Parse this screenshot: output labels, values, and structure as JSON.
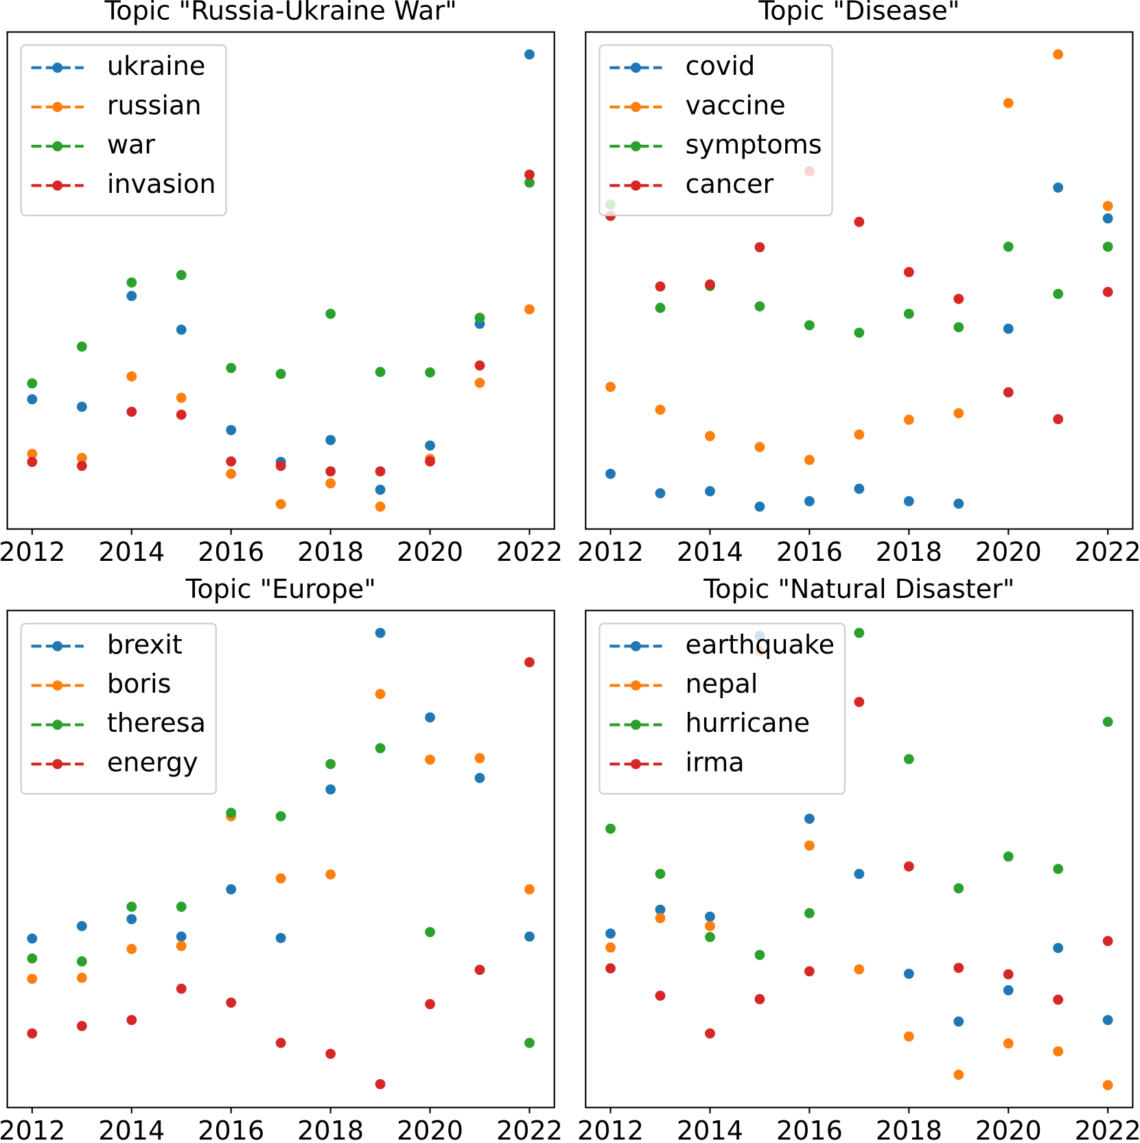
{
  "chart_data": [
    {
      "type": "line",
      "title": "Topic \"Russia-Ukraine War\"",
      "x": [
        2012,
        2013,
        2014,
        2015,
        2016,
        2017,
        2018,
        2019,
        2020,
        2021,
        2022
      ],
      "xlim": [
        2011.5,
        2022.5
      ],
      "xticks": [
        2012,
        2014,
        2016,
        2018,
        2020,
        2022
      ],
      "ylim": [
        0,
        100
      ],
      "legend": "upper left",
      "series": [
        {
          "name": "ukraine",
          "color": "#1f77b4",
          "values": [
            26.1,
            24.6,
            46.9,
            40.1,
            19.9,
            13.5,
            17.9,
            7.9,
            16.8,
            41.3,
            95.5
          ]
        },
        {
          "name": "russian",
          "color": "#ff7f0e",
          "values": [
            15.1,
            14.3,
            30.7,
            26.4,
            11.1,
            5.0,
            9.2,
            4.5,
            14.1,
            29.4,
            44.2
          ]
        },
        {
          "name": "war",
          "color": "#2ca02c",
          "values": [
            29.3,
            36.7,
            49.6,
            51.1,
            32.4,
            31.2,
            43.3,
            31.6,
            31.5,
            42.5,
            69.7
          ]
        },
        {
          "name": "invasion",
          "color": "#d62728",
          "values": [
            13.5,
            12.7,
            23.6,
            23.0,
            13.6,
            12.7,
            11.6,
            11.6,
            13.6,
            32.9,
            71.3
          ]
        }
      ]
    },
    {
      "type": "line",
      "title": "Topic \"Disease\"",
      "x": [
        2012,
        2013,
        2014,
        2015,
        2016,
        2017,
        2018,
        2019,
        2020,
        2021,
        2022
      ],
      "xlim": [
        2011.5,
        2022.5
      ],
      "xticks": [
        2012,
        2014,
        2016,
        2018,
        2020,
        2022
      ],
      "ylim": [
        0,
        100
      ],
      "legend": "upper left",
      "series": [
        {
          "name": "covid",
          "color": "#1f77b4",
          "values": [
            11.1,
            7.2,
            7.6,
            4.5,
            5.6,
            8.1,
            5.6,
            5.1,
            40.3,
            68.7,
            62.5
          ]
        },
        {
          "name": "vaccine",
          "color": "#ff7f0e",
          "values": [
            28.6,
            24.0,
            18.7,
            16.5,
            13.9,
            19.0,
            22.0,
            23.3,
            85.7,
            95.5,
            65.0
          ]
        },
        {
          "name": "symptoms",
          "color": "#2ca02c",
          "values": [
            65.3,
            44.5,
            48.9,
            44.8,
            41.0,
            39.5,
            43.3,
            40.6,
            56.8,
            47.3,
            56.8
          ]
        },
        {
          "name": "cancer",
          "color": "#d62728",
          "values": [
            63.0,
            48.8,
            49.2,
            56.7,
            72.0,
            61.8,
            51.7,
            46.3,
            27.5,
            22.1,
            47.7
          ]
        }
      ]
    },
    {
      "type": "line",
      "title": "Topic \"Europe\"",
      "x": [
        2012,
        2013,
        2014,
        2015,
        2016,
        2017,
        2018,
        2019,
        2020,
        2021,
        2022
      ],
      "xlim": [
        2011.5,
        2022.5
      ],
      "xticks": [
        2012,
        2014,
        2016,
        2018,
        2020,
        2022
      ],
      "ylim": [
        0,
        100
      ],
      "legend": "upper left",
      "series": [
        {
          "name": "brexit",
          "color": "#1f77b4",
          "values": [
            34.0,
            36.5,
            37.9,
            34.4,
            43.9,
            34.1,
            64.0,
            95.5,
            78.5,
            66.3,
            34.4
          ]
        },
        {
          "name": "boris",
          "color": "#ff7f0e",
          "values": [
            25.9,
            26.1,
            31.9,
            32.5,
            58.6,
            46.1,
            46.9,
            83.2,
            70.0,
            70.3,
            43.9
          ]
        },
        {
          "name": "theresa",
          "color": "#2ca02c",
          "values": [
            30.0,
            29.4,
            40.4,
            40.4,
            59.3,
            58.6,
            69.1,
            72.3,
            35.3,
            27.7,
            13.0
          ]
        },
        {
          "name": "energy",
          "color": "#d62728",
          "values": [
            14.9,
            16.4,
            17.6,
            23.9,
            21.1,
            13.0,
            10.8,
            4.7,
            20.8,
            27.7,
            89.6
          ]
        }
      ]
    },
    {
      "type": "line",
      "title": "Topic \"Natural Disaster\"",
      "x": [
        2012,
        2013,
        2014,
        2015,
        2016,
        2017,
        2018,
        2019,
        2020,
        2021,
        2022
      ],
      "xlim": [
        2011.5,
        2022.5
      ],
      "xticks": [
        2012,
        2014,
        2016,
        2018,
        2020,
        2022
      ],
      "ylim": [
        0,
        100
      ],
      "legend": "upper left",
      "series": [
        {
          "name": "earthquake",
          "color": "#1f77b4",
          "values": [
            35.0,
            39.8,
            38.4,
            94.9,
            58.1,
            47.0,
            26.9,
            17.3,
            23.6,
            32.1,
            17.6
          ]
        },
        {
          "name": "nepal",
          "color": "#ff7f0e",
          "values": [
            32.2,
            38.1,
            36.5,
            91.8,
            52.7,
            27.8,
            14.3,
            6.6,
            12.9,
            11.3,
            4.5
          ]
        },
        {
          "name": "hurricane",
          "color": "#2ca02c",
          "values": [
            56.1,
            47.0,
            34.3,
            30.7,
            39.1,
            95.5,
            70.1,
            44.1,
            50.5,
            48.0,
            77.6
          ]
        },
        {
          "name": "irma",
          "color": "#d62728",
          "values": [
            28.0,
            22.5,
            14.9,
            21.8,
            27.4,
            81.6,
            48.5,
            28.1,
            26.8,
            21.7,
            33.5
          ]
        }
      ]
    }
  ]
}
